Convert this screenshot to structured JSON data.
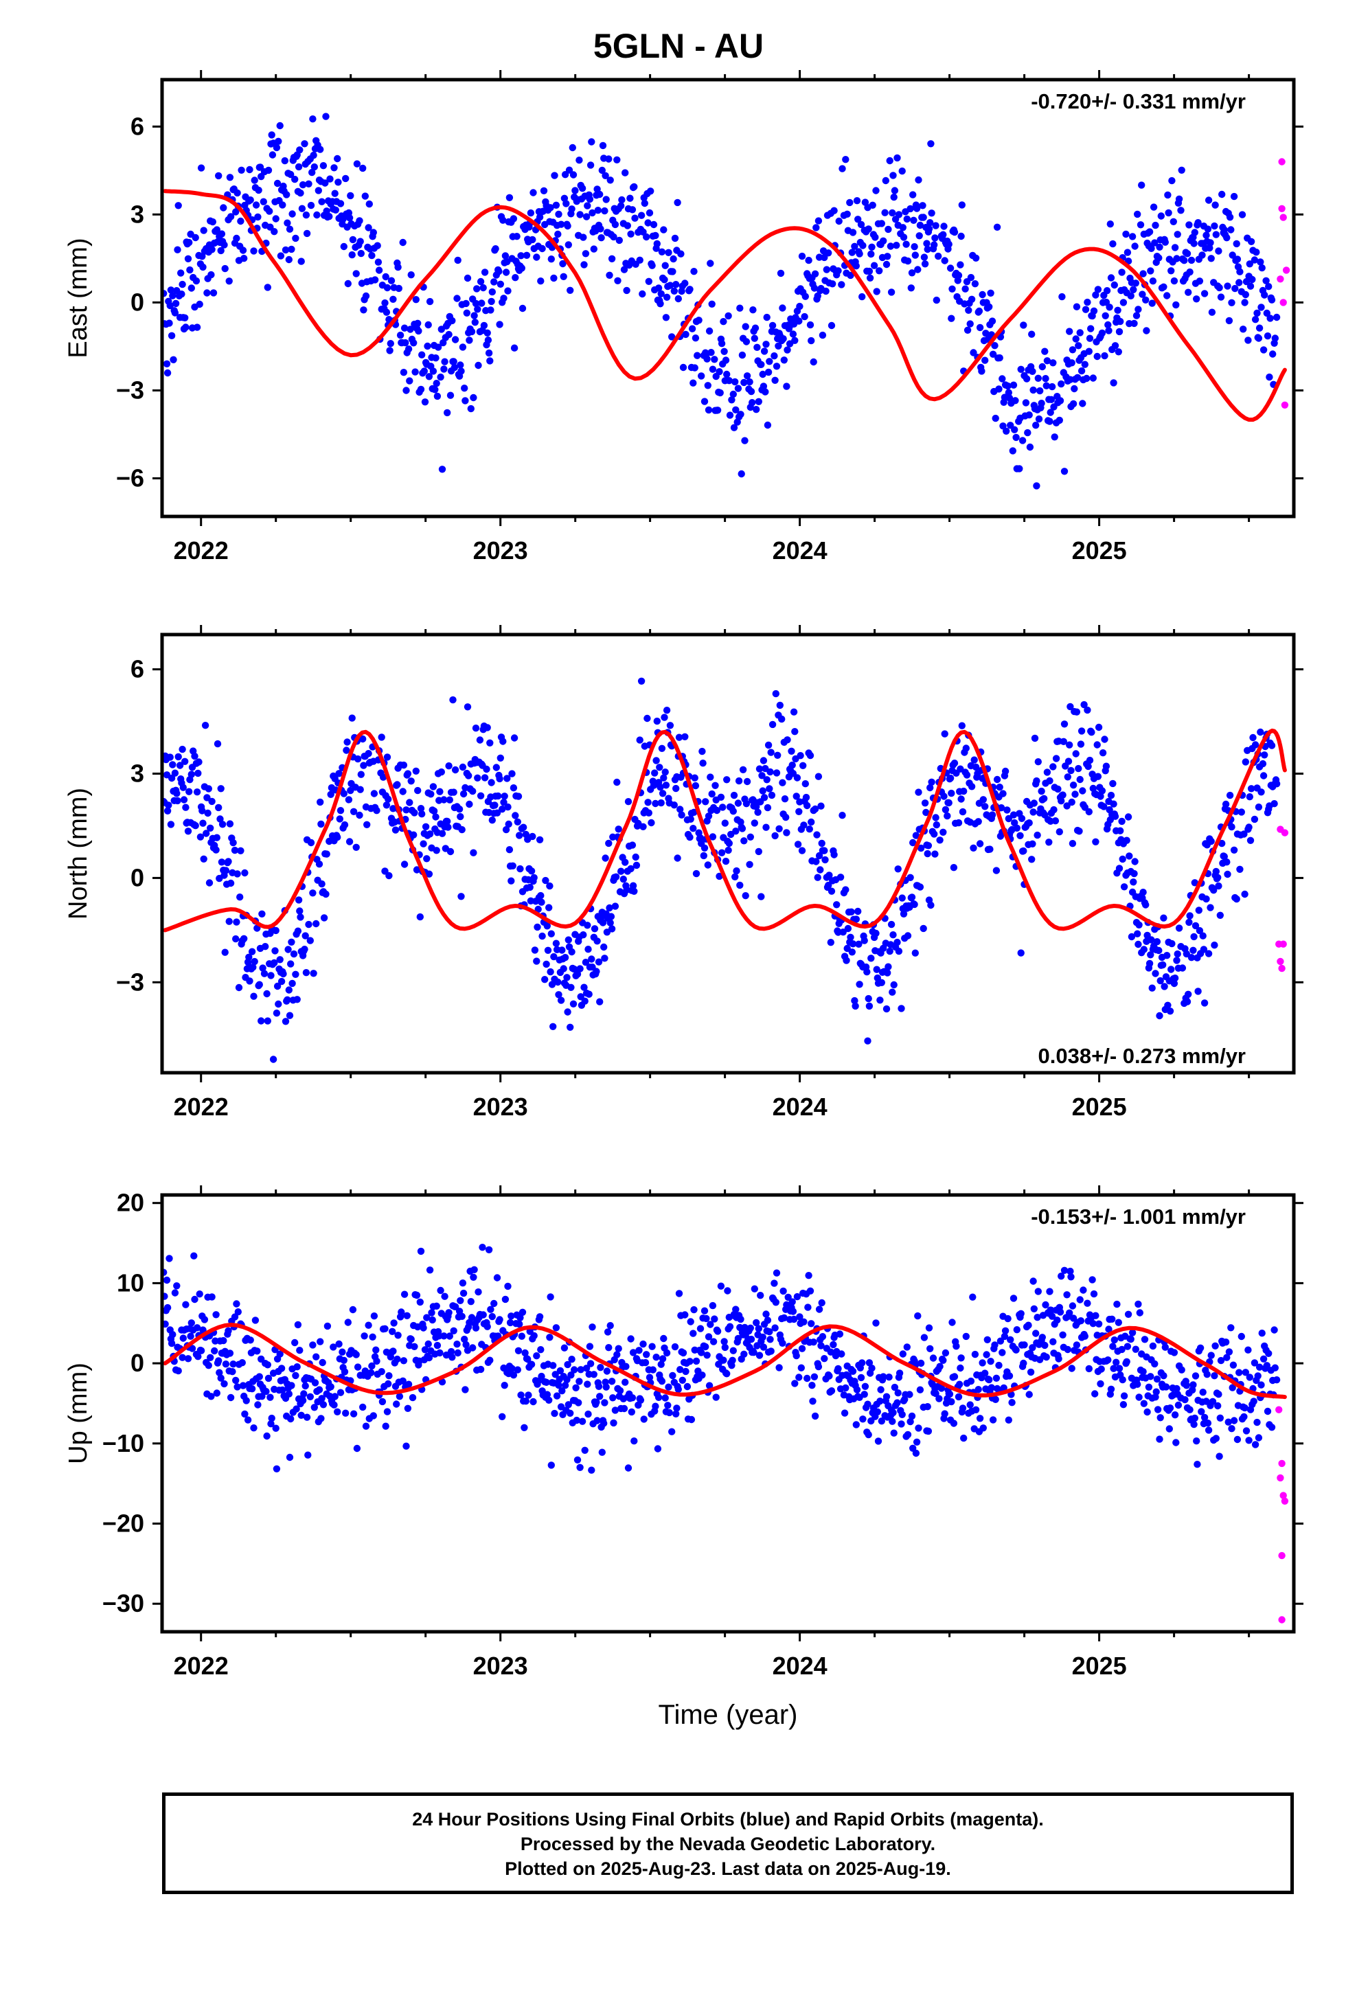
{
  "title": "5GLN - AU",
  "colors": {
    "final_orbits": "#0000ff",
    "rapid_orbits": "#ff00ff",
    "fit_line": "#ff0000",
    "frame": "#000000"
  },
  "footer": {
    "line1": "24 Hour Positions Using Final Orbits (blue) and Rapid Orbits (magenta).",
    "line2": "Processed by the Nevada Geodetic Laboratory.",
    "line3": "Plotted on 2025-Aug-23. Last data on 2025-Aug-19."
  },
  "xlabel": "Time (year)",
  "chart_data": [
    {
      "type": "scatter",
      "component": "east",
      "ylabel": "East (mm)",
      "rate": "-0.720+/- 0.331 mm/yr",
      "xlim": [
        2021.87,
        2025.65
      ],
      "ylim": [
        -7.3,
        7.6
      ],
      "xticks": [
        2022,
        2023,
        2024,
        2025
      ],
      "xtick_labels": [
        "2022",
        "2023",
        "2024",
        "2025"
      ],
      "yticks": [
        6,
        3,
        0,
        -3,
        -6
      ],
      "ytick_labels": [
        "6",
        "3",
        "0",
        "−3",
        "−6"
      ],
      "model": {
        "mean": 1.9,
        "trend": -0.72,
        "t0": 2021.87,
        "a1": 2.9,
        "p1": 2.71,
        "a2": 0.5,
        "p2": 1.62
      },
      "noise": 1.1,
      "final_fit": [
        [
          2021.88,
          3.8
        ],
        [
          2022.0,
          3.7
        ],
        [
          2022.12,
          3.3
        ],
        [
          2022.25,
          1.3
        ],
        [
          2022.5,
          -1.8
        ],
        [
          2022.75,
          0.8
        ],
        [
          2022.95,
          3.1
        ],
        [
          2023.1,
          2.8
        ],
        [
          2023.25,
          1.0
        ],
        [
          2023.45,
          -2.6
        ],
        [
          2023.7,
          0.4
        ],
        [
          2023.92,
          2.4
        ],
        [
          2024.1,
          2.0
        ],
        [
          2024.3,
          -0.8
        ],
        [
          2024.45,
          -3.3
        ],
        [
          2024.7,
          -0.6
        ],
        [
          2024.92,
          1.7
        ],
        [
          2025.1,
          1.2
        ],
        [
          2025.3,
          -1.5
        ],
        [
          2025.5,
          -4.0
        ],
        [
          2025.62,
          -2.3
        ]
      ],
      "rapid_points": [
        [
          2025.61,
          4.8
        ],
        [
          2025.61,
          3.2
        ],
        [
          2025.615,
          2.9
        ],
        [
          2025.625,
          1.1
        ],
        [
          2025.605,
          0.8
        ],
        [
          2025.615,
          0.0
        ],
        [
          2025.62,
          -3.5
        ]
      ]
    },
    {
      "type": "scatter",
      "component": "north",
      "ylabel": "North (mm)",
      "rate": "0.038+/- 0.273 mm/yr",
      "xlim": [
        2021.87,
        2025.65
      ],
      "ylim": [
        -5.6,
        7.0
      ],
      "xticks": [
        2022,
        2023,
        2024,
        2025
      ],
      "xtick_labels": [
        "2022",
        "2023",
        "2024",
        "2025"
      ],
      "yticks": [
        6,
        3,
        0,
        -3
      ],
      "ytick_labels": [
        "6",
        "3",
        "0",
        "−3"
      ],
      "model": {
        "mean": 0.9,
        "trend": 0.038,
        "t0": 2021.87,
        "a1": 2.1,
        "p1": -0.79,
        "a2": 1.65,
        "p2": 1.57
      },
      "noise": 0.9,
      "final_fit": [
        [
          2021.88,
          -1.5
        ],
        [
          2022.1,
          -0.9
        ],
        [
          2022.25,
          -1.3
        ],
        [
          2022.42,
          1.5
        ],
        [
          2022.55,
          4.2
        ],
        [
          2022.7,
          1.0
        ],
        [
          2022.85,
          -1.4
        ],
        [
          2023.05,
          -0.8
        ],
        [
          2023.25,
          -1.3
        ],
        [
          2023.42,
          1.5
        ],
        [
          2023.55,
          4.2
        ],
        [
          2023.7,
          1.0
        ],
        [
          2023.85,
          -1.4
        ],
        [
          2024.05,
          -0.8
        ],
        [
          2024.25,
          -1.3
        ],
        [
          2024.42,
          1.5
        ],
        [
          2024.55,
          4.2
        ],
        [
          2024.7,
          1.0
        ],
        [
          2024.85,
          -1.4
        ],
        [
          2025.05,
          -0.8
        ],
        [
          2025.25,
          -1.3
        ],
        [
          2025.42,
          1.5
        ],
        [
          2025.57,
          4.2
        ],
        [
          2025.62,
          3.1
        ]
      ],
      "rapid_points": [
        [
          2025.605,
          1.4
        ],
        [
          2025.62,
          1.3
        ],
        [
          2025.6,
          -1.9
        ],
        [
          2025.615,
          -1.9
        ],
        [
          2025.605,
          -2.4
        ],
        [
          2025.61,
          -2.6
        ]
      ]
    },
    {
      "type": "scatter",
      "component": "up",
      "ylabel": "Up (mm)",
      "rate": "-0.153+/- 1.001 mm/yr",
      "xlim": [
        2021.87,
        2025.65
      ],
      "ylim": [
        -33.5,
        21.0
      ],
      "xticks": [
        2022,
        2023,
        2024,
        2025
      ],
      "xtick_labels": [
        "2022",
        "2023",
        "2024",
        "2025"
      ],
      "yticks": [
        20,
        10,
        0,
        -10,
        -20,
        -30
      ],
      "ytick_labels": [
        "20",
        "10",
        "0",
        "−10",
        "−20",
        "−30"
      ],
      "model": {
        "mean": 0.3,
        "trend": -0.153,
        "t0": 2021.87,
        "a1": 4.2,
        "p1": 0.0,
        "a2": 0.8,
        "p2": 0.5
      },
      "noise": 3.6,
      "final_fit": [
        [
          2021.88,
          0.0
        ],
        [
          2022.1,
          4.8
        ],
        [
          2022.35,
          0.0
        ],
        [
          2022.6,
          -3.7
        ],
        [
          2022.85,
          -1.0
        ],
        [
          2023.1,
          4.5
        ],
        [
          2023.35,
          0.0
        ],
        [
          2023.6,
          -3.9
        ],
        [
          2023.85,
          -1.0
        ],
        [
          2024.1,
          4.6
        ],
        [
          2024.35,
          0.0
        ],
        [
          2024.6,
          -4.0
        ],
        [
          2024.85,
          -1.0
        ],
        [
          2025.1,
          4.4
        ],
        [
          2025.35,
          0.0
        ],
        [
          2025.5,
          -3.5
        ],
        [
          2025.62,
          -4.2
        ]
      ],
      "rapid_points": [
        [
          2025.6,
          -5.8
        ],
        [
          2025.61,
          -12.5
        ],
        [
          2025.605,
          -14.3
        ],
        [
          2025.615,
          -16.5
        ],
        [
          2025.62,
          -17.2
        ],
        [
          2025.61,
          -24.0
        ],
        [
          2025.61,
          -32.0
        ]
      ]
    }
  ]
}
